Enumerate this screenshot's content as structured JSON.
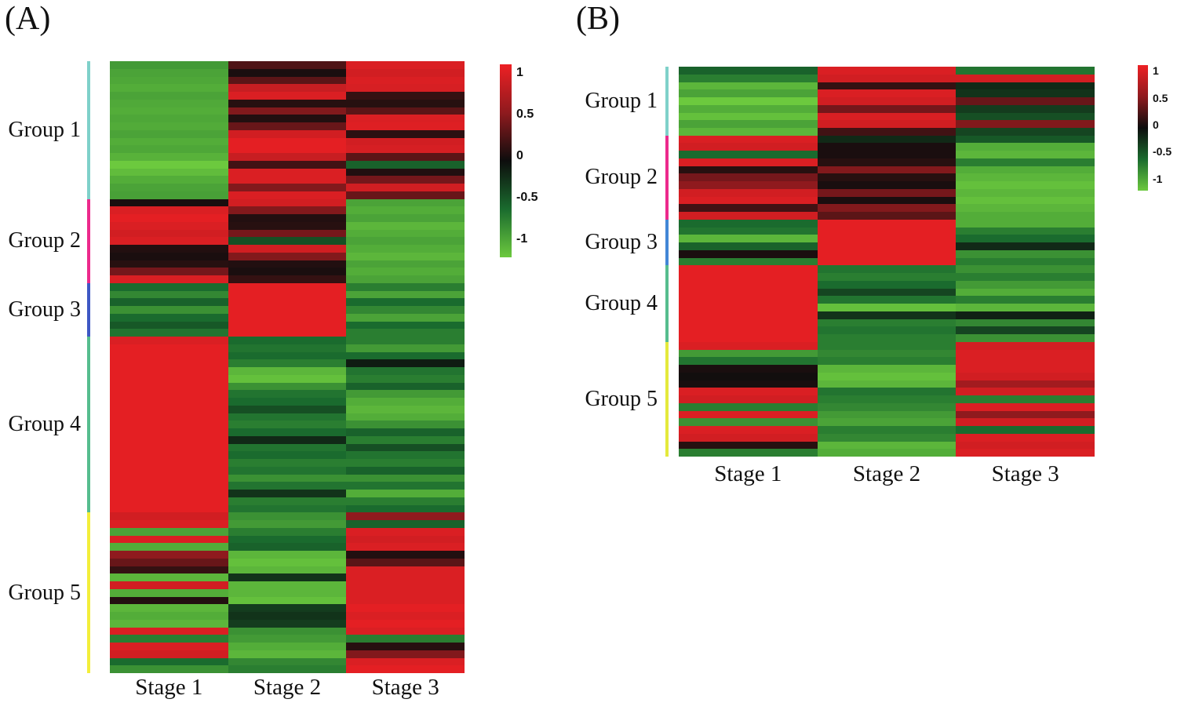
{
  "page": {
    "background_color": "#ffffff"
  },
  "colormap_anchors": [
    {
      "value": 1,
      "color": "#ed2024"
    },
    {
      "value": 0.5,
      "color": "#8f1a1e"
    },
    {
      "value": 0,
      "color": "#0d0d0d"
    },
    {
      "value": -0.5,
      "color": "#1a6b2e"
    },
    {
      "value": -1,
      "color": "#6cc93e"
    }
  ],
  "chart_data": [
    {
      "type": "heatmap",
      "panel_label": "(A)",
      "x_categories": [
        "Stage 1",
        "Stage 2",
        "Stage 3"
      ],
      "value_range": [
        -1,
        1
      ],
      "colorbar_ticks": [
        "1",
        "0.5",
        "0",
        "-0.5",
        "-1"
      ],
      "colorbar_tick_positions": [
        0.045,
        0.26,
        0.475,
        0.69,
        0.905
      ],
      "row_groups": [
        {
          "name": "Group 1",
          "sidebar_color": "#7fd1ca",
          "rows": [
            [
              -0.75,
              0.25,
              0.9
            ],
            [
              -0.8,
              0.05,
              0.85
            ],
            [
              -0.82,
              0.3,
              0.9
            ],
            [
              -0.85,
              0.8,
              0.88
            ],
            [
              -0.8,
              0.9,
              0.15
            ],
            [
              -0.83,
              0.1,
              0.1
            ],
            [
              -0.85,
              0.45,
              0.3
            ],
            [
              -0.82,
              0.08,
              0.9
            ],
            [
              -0.84,
              0.35,
              0.92
            ],
            [
              -0.8,
              0.85,
              0.12
            ],
            [
              -0.85,
              0.95,
              0.85
            ],
            [
              -0.82,
              0.95,
              0.88
            ],
            [
              -0.88,
              0.8,
              0.3
            ],
            [
              -1.0,
              0.2,
              -0.45
            ],
            [
              -0.93,
              0.9,
              0.08
            ],
            [
              -0.85,
              0.9,
              0.4
            ],
            [
              -0.8,
              0.45,
              0.85
            ],
            [
              -0.78,
              0.9,
              0.35
            ]
          ]
        },
        {
          "name": "Group 2",
          "sidebar_color": "#ec2a8c",
          "rows": [
            [
              0.05,
              0.85,
              -0.8
            ],
            [
              0.9,
              0.45,
              -0.85
            ],
            [
              0.95,
              0.08,
              -0.8
            ],
            [
              0.9,
              0.1,
              -0.9
            ],
            [
              0.85,
              0.4,
              -0.85
            ],
            [
              0.9,
              -0.35,
              -0.8
            ],
            [
              0.08,
              0.85,
              -0.85
            ],
            [
              0.05,
              0.45,
              -0.9
            ],
            [
              0.1,
              0.08,
              -0.8
            ],
            [
              0.4,
              0.05,
              -0.85
            ],
            [
              0.9,
              0.15,
              -0.8
            ]
          ]
        },
        {
          "name": "Group 3",
          "sidebar_color": "#3e58c4",
          "rows": [
            [
              -0.5,
              0.95,
              -0.6
            ],
            [
              -0.65,
              0.95,
              -0.8
            ],
            [
              -0.45,
              0.95,
              -0.5
            ],
            [
              -0.7,
              0.95,
              -0.65
            ],
            [
              -0.5,
              0.95,
              -0.8
            ],
            [
              -0.4,
              0.95,
              -0.5
            ],
            [
              -0.55,
              0.95,
              -0.6
            ]
          ]
        },
        {
          "name": "Group 4",
          "sidebar_color": "#56bd8e",
          "rows": [
            [
              0.9,
              -0.5,
              -0.6
            ],
            [
              0.95,
              -0.55,
              -0.75
            ],
            [
              0.95,
              -0.5,
              -0.5
            ],
            [
              0.95,
              -0.6,
              -0.08
            ],
            [
              0.95,
              -0.9,
              -0.55
            ],
            [
              0.95,
              -0.95,
              -0.6
            ],
            [
              0.95,
              -0.7,
              -0.45
            ],
            [
              0.95,
              -0.55,
              -0.75
            ],
            [
              0.95,
              -0.5,
              -0.85
            ],
            [
              0.95,
              -0.35,
              -0.9
            ],
            [
              0.95,
              -0.55,
              -0.85
            ],
            [
              0.95,
              -0.6,
              -0.7
            ],
            [
              0.95,
              -0.5,
              -0.45
            ],
            [
              0.95,
              -0.15,
              -0.6
            ],
            [
              0.95,
              -0.55,
              -0.35
            ],
            [
              0.95,
              -0.5,
              -0.55
            ],
            [
              0.95,
              -0.6,
              -0.6
            ],
            [
              0.95,
              -0.55,
              -0.45
            ],
            [
              0.95,
              -0.7,
              -0.7
            ],
            [
              0.95,
              -0.55,
              -0.55
            ],
            [
              0.95,
              -0.2,
              -0.85
            ],
            [
              0.95,
              -0.6,
              -0.6
            ],
            [
              0.95,
              -0.55,
              -0.5
            ]
          ]
        },
        {
          "name": "Group 5",
          "sidebar_color": "#f3ee3b",
          "rows": [
            [
              0.85,
              -0.7,
              0.5
            ],
            [
              0.9,
              -0.75,
              -0.45
            ],
            [
              -0.8,
              -0.6,
              0.9
            ],
            [
              0.9,
              -0.5,
              0.85
            ],
            [
              -0.85,
              -0.45,
              0.9
            ],
            [
              0.5,
              -0.9,
              0.08
            ],
            [
              0.35,
              -0.95,
              0.3
            ],
            [
              0.15,
              -0.9,
              0.9
            ],
            [
              -0.9,
              -0.2,
              0.9
            ],
            [
              0.85,
              -0.9,
              0.9
            ],
            [
              -0.85,
              -0.9,
              0.9
            ],
            [
              0.08,
              -0.95,
              0.9
            ],
            [
              -0.9,
              -0.25,
              0.95
            ],
            [
              -0.85,
              -0.2,
              0.9
            ],
            [
              -0.9,
              -0.25,
              0.95
            ],
            [
              0.9,
              -0.7,
              0.9
            ],
            [
              -0.6,
              -0.75,
              -0.6
            ],
            [
              0.9,
              -0.85,
              0.1
            ],
            [
              0.85,
              -0.9,
              0.45
            ],
            [
              -0.5,
              -0.65,
              0.9
            ],
            [
              -0.7,
              -0.6,
              0.95
            ]
          ]
        }
      ]
    },
    {
      "type": "heatmap",
      "panel_label": "(B)",
      "x_categories": [
        "Stage 1",
        "Stage 2",
        "Stage 3"
      ],
      "value_range": [
        -1,
        1
      ],
      "colorbar_ticks": [
        "1",
        "0.5",
        "0",
        "-0.5",
        "-1"
      ],
      "colorbar_tick_positions": [
        0.045,
        0.26,
        0.475,
        0.69,
        0.905
      ],
      "row_groups": [
        {
          "name": "Group 1",
          "sidebar_color": "#7fd1ca",
          "rows": [
            [
              -0.45,
              0.9,
              -0.55
            ],
            [
              -0.6,
              0.85,
              0.85
            ],
            [
              -0.9,
              0.15,
              -0.15
            ],
            [
              -0.8,
              0.9,
              -0.2
            ],
            [
              -1.0,
              0.85,
              0.35
            ],
            [
              -0.85,
              0.4,
              -0.25
            ],
            [
              -0.95,
              0.9,
              -0.35
            ],
            [
              -0.8,
              0.85,
              0.45
            ],
            [
              -0.9,
              0.2,
              -0.3
            ]
          ]
        },
        {
          "name": "Group 2",
          "sidebar_color": "#ec2a8c",
          "rows": [
            [
              0.9,
              -0.15,
              -0.4
            ],
            [
              0.85,
              0.05,
              -0.85
            ],
            [
              -0.5,
              0.05,
              -0.9
            ],
            [
              0.9,
              0.1,
              -0.6
            ],
            [
              0.1,
              0.45,
              -0.85
            ],
            [
              0.4,
              0.1,
              -0.9
            ],
            [
              0.5,
              0.05,
              -0.95
            ],
            [
              0.85,
              0.4,
              -0.9
            ],
            [
              0.9,
              0.05,
              -0.95
            ],
            [
              0.2,
              0.45,
              -0.9
            ],
            [
              0.85,
              0.3,
              -0.85
            ]
          ]
        },
        {
          "name": "Group 3",
          "sidebar_color": "#4287d6",
          "rows": [
            [
              -0.5,
              0.95,
              -0.85
            ],
            [
              -0.55,
              0.95,
              -0.6
            ],
            [
              -0.9,
              0.95,
              -0.5
            ],
            [
              -0.45,
              0.95,
              -0.15
            ],
            [
              0.05,
              0.95,
              -0.7
            ],
            [
              -0.6,
              0.95,
              -0.6
            ]
          ]
        },
        {
          "name": "Group 4",
          "sidebar_color": "#56bd8e",
          "rows": [
            [
              0.95,
              -0.55,
              -0.7
            ],
            [
              0.95,
              -0.6,
              -0.6
            ],
            [
              0.95,
              -0.5,
              -0.75
            ],
            [
              0.95,
              -0.3,
              -0.85
            ],
            [
              0.95,
              -0.55,
              -0.6
            ],
            [
              0.95,
              -0.95,
              -0.9
            ],
            [
              0.95,
              -0.2,
              -0.1
            ],
            [
              0.95,
              -0.6,
              -0.65
            ],
            [
              0.95,
              -0.55,
              -0.3
            ],
            [
              0.95,
              -0.6,
              -0.7
            ]
          ]
        },
        {
          "name": "Group 5",
          "sidebar_color": "#e4e93c",
          "rows": [
            [
              0.9,
              -0.6,
              0.85
            ],
            [
              -0.75,
              -0.65,
              0.9
            ],
            [
              -0.55,
              -0.6,
              0.9
            ],
            [
              0.05,
              -0.9,
              0.9
            ],
            [
              0.02,
              -0.95,
              0.85
            ],
            [
              0.05,
              -0.9,
              0.6
            ],
            [
              0.9,
              -0.55,
              0.85
            ],
            [
              0.85,
              -0.6,
              -0.6
            ],
            [
              -0.6,
              -0.65,
              0.9
            ],
            [
              0.9,
              -0.75,
              0.5
            ],
            [
              -0.7,
              -0.8,
              0.85
            ],
            [
              0.9,
              -0.6,
              -0.5
            ],
            [
              0.85,
              -0.65,
              0.9
            ],
            [
              0.1,
              -0.9,
              0.85
            ],
            [
              -0.6,
              -0.85,
              0.9
            ]
          ]
        }
      ]
    }
  ]
}
